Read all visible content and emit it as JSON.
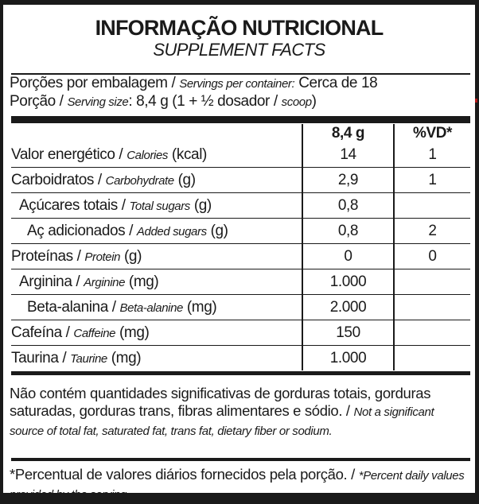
{
  "header": {
    "title": "INFORMAÇÃO NUTRICIONAL",
    "subtitle": "SUPPLEMENT FACTS"
  },
  "servings": {
    "per_container_pt": "Porções por embalagem /",
    "per_container_en": "Servings per container:",
    "per_container_value": "Cerca de 18",
    "size_pt": "Porção /",
    "size_en": "Serving size",
    "size_value": ": 8,4 g (1 + ½ dosador /",
    "size_scoop": "scoop",
    "size_close": ")"
  },
  "table": {
    "columns": [
      "8,4 g",
      "%VD*"
    ],
    "rows": [
      {
        "pt": "Valor energético /",
        "en": "Calories",
        "unit": "(kcal)",
        "amount": "14",
        "dv": "1"
      },
      {
        "pt": "Carboidratos /",
        "en": "Carbohydrate",
        "unit": "(g)",
        "amount": "2,9",
        "dv": "1"
      },
      {
        "pt": "Açúcares totais /",
        "en": "Total sugars",
        "unit": "(g)",
        "amount": "0,8",
        "dv": ""
      },
      {
        "pt": "Aç adicionados /",
        "en": "Added sugars",
        "unit": "(g)",
        "amount": "0,8",
        "dv": "2"
      },
      {
        "pt": "Proteínas /",
        "en": "Protein",
        "unit": "(g)",
        "amount": "0",
        "dv": "0"
      },
      {
        "pt": "Arginina /",
        "en": "Arginine",
        "unit": "(mg)",
        "amount": "1.000",
        "dv": ""
      },
      {
        "pt": "Beta-alanina /",
        "en": "Beta-alanine",
        "unit": "(mg)",
        "amount": "2.000",
        "dv": ""
      },
      {
        "pt": "Cafeína /",
        "en": "Caffeine",
        "unit": "(mg)",
        "amount": "150",
        "dv": ""
      },
      {
        "pt": "Taurina /",
        "en": "Taurine",
        "unit": "(mg)",
        "amount": "1.000",
        "dv": ""
      }
    ]
  },
  "footnotes": {
    "not_significant_pt": "Não contém quantidades significativas de gorduras totais, gorduras saturadas, gorduras trans, fibras alimentares e sódio. /",
    "not_significant_en": "Not a significant source of total fat, saturated fat, trans fat, dietary fiber or sodium.",
    "dv_pt": "*Percentual de valores diários fornecidos pela porção. /",
    "dv_en": "*Percent daily values provided by the serving."
  }
}
